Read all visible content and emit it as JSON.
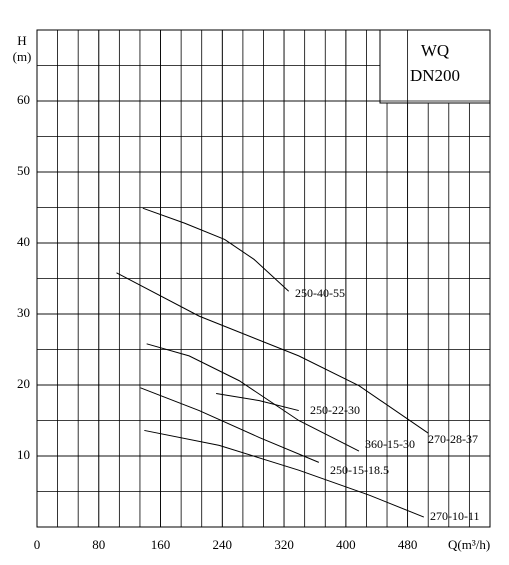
{
  "chart_data": {
    "type": "line",
    "box_lines": [
      "WQ",
      "DN200"
    ],
    "y_axis_label": [
      "H",
      "(m)"
    ],
    "x_axis_label": "Q(m³/h)",
    "xlim": [
      0,
      586.7
    ],
    "xticks": [
      0,
      80,
      160,
      240,
      320,
      400,
      480
    ],
    "ylim": [
      0,
      70
    ],
    "yticks": [
      10,
      20,
      30,
      40,
      50,
      60
    ],
    "grid": true,
    "series": [
      {
        "name": "250-40-55",
        "color": "#000000",
        "x": [
          137,
          191,
          243,
          281,
          326
        ],
        "values": [
          44.9,
          42.8,
          40.5,
          37.7,
          33.2
        ]
      },
      {
        "name": "270-28-37",
        "color": "#000000",
        "x": [
          103,
          210,
          339,
          417,
          507
        ],
        "values": [
          35.8,
          29.7,
          24.1,
          19.9,
          13.2
        ]
      },
      {
        "name": "250-22-30",
        "color": "#000000",
        "x": [
          232,
          288,
          339
        ],
        "values": [
          18.8,
          17.8,
          16.4
        ]
      },
      {
        "name": "360-15-30",
        "color": "#000000",
        "x": [
          142,
          197,
          262,
          339,
          417
        ],
        "values": [
          25.8,
          24.1,
          20.6,
          15.0,
          10.7
        ]
      },
      {
        "name": "250-15-18.5",
        "color": "#000000",
        "x": [
          134,
          210,
          288,
          365
        ],
        "values": [
          19.6,
          16.4,
          12.6,
          9.1
        ]
      },
      {
        "name": "270-10-11",
        "color": "#000000",
        "x": [
          139,
          236,
          339,
          430,
          501
        ],
        "values": [
          13.6,
          11.5,
          8.0,
          4.5,
          1.4
        ]
      }
    ]
  }
}
